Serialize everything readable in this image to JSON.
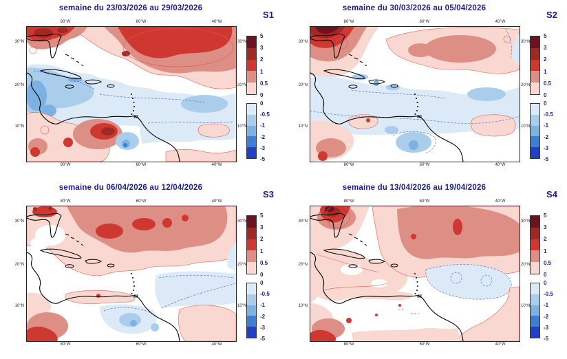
{
  "figure_title": "",
  "panels": [
    {
      "tag": "S1",
      "title": "semaine du 23/03/2026 au 29/03/2026"
    },
    {
      "tag": "S2",
      "title": "semaine du 30/03/2026 au 05/04/2026"
    },
    {
      "tag": "S3",
      "title": "semaine du 06/04/2026 au 12/04/2026"
    },
    {
      "tag": "S4",
      "title": "semaine du 13/04/2026 au 19/04/2026"
    }
  ],
  "axis": {
    "lon_ticks": [
      "80°W",
      "60°W",
      "40°W"
    ],
    "lat_ticks": [
      "30°N",
      "20°N",
      "10°N"
    ]
  },
  "colorbar": {
    "positive": {
      "labels": [
        "5",
        "3",
        "2",
        "1",
        "0.5",
        "0"
      ],
      "colors": [
        "#6c1220",
        "#9e2a23",
        "#cf3830",
        "#dd8e85",
        "#f9d8d1"
      ],
      "step": 17.2
    },
    "negative": {
      "labels": [
        "0",
        "-0.5",
        "-1",
        "-2",
        "-3",
        "-5"
      ],
      "colors": [
        "#dce9f6",
        "#abcdec",
        "#7cb1e2",
        "#3d7ed2",
        "#2140c4"
      ],
      "step": 16.2
    }
  },
  "palette": {
    "p05": "#f9d8d1",
    "p1": "#dd8e85",
    "p2": "#cf3830",
    "p3": "#9e2a23",
    "p5": "#6c1220",
    "m05": "#dce9f6",
    "m1": "#abcdec",
    "m2": "#7cb1e2",
    "m3": "#3d7ed2",
    "m5": "#2140c4",
    "crp": "#e4584c",
    "crn": "#5570d6",
    "title": "#1b1b8e",
    "tick": "#222222"
  },
  "chart_data": {
    "type": "heatmap",
    "subtype": "filled-contour anomaly maps, 2x2 weekly panels, Caribbean / tropical North Atlantic",
    "x_ticks": [
      "80°W",
      "60°W",
      "40°W"
    ],
    "y_ticks": [
      "30°N",
      "20°N",
      "10°N"
    ],
    "colorbar_levels": [
      5,
      3,
      2,
      1,
      0.5,
      0,
      -0.5,
      -1,
      -2,
      -3,
      -5
    ],
    "contour_style": {
      "positive": "solid red lines",
      "negative": "dashed blue lines",
      "coastlines": "solid black"
    },
    "panels": [
      {
        "tag": "S1",
        "title": "semaine du 23/03/2026 au 29/03/2026",
        "warm_features": [
          "2 to 5 anomaly over SE United States / northern Gulf corner",
          "broad 0.5-2 warm band across subtropical Atlantic 22-32N with 1-2 core near 45-60W",
          "1-3 warm cell over Colombia/Venezuela near 72W 5-9N with small 2-3 core",
          "pale warm strip along bottom-right edge"
        ],
        "cool_features": [
          "-0.5 to -2 pool over western Caribbean and around Cuba",
          "0 to -1 band across tropical Atlantic 12-18N with -1 patch near 42W",
          "small -2 spot near 57W 3N"
        ]
      },
      {
        "tag": "S2",
        "title": "semaine du 30/03/2026 au 05/04/2026",
        "warm_features": [
          "3 to 5 maroon core over SE US coast fading to 0.5-1 down the left edge",
          "pale 0-1 warm band 20-30N with 0.5-1 core near 45-57W",
          "warm spots: SW corner 1-2, small blob near 42W 8N"
        ],
        "cool_features": [
          "extensive weak 0 to -1 cool area over Caribbean and central tropical Atlantic",
          "-1 to -2 patches near 55-60W 0-8N",
          "-1 patch near 40W 18N"
        ]
      },
      {
        "tag": "S3",
        "title": "semaine du 06/04/2026 au 12/04/2026",
        "warm_features": [
          "large 0.5-1 warm band over most of the subtropical Atlantic 18-32N",
          "1-2 cores near 68W 26N and 55-60W 28N",
          "1-2 over Florida/SE US",
          "1-2 core at bottom-left (eastern Pacific) corner",
          "pale warm blob bottom-right near 38-45W"
        ],
        "cool_features": [
          "0 to -0.5 region east of 55W between 10-20N",
          "-0.5 to -2 pocket near 55-62W 2-8N"
        ]
      },
      {
        "tag": "S4",
        "title": "semaine du 13/04/2026 au 19/04/2026",
        "warm_features": [
          "2 to 5 compact maximum over SE US coast",
          "wide 0.5-1 warm band from 70W to the east edge 18-30N with small 1-2 spots near 50W 27N",
          "weak 0-0.5 warmth over most of the Caribbean and along both bottom corners",
          "1-2 core at bottom-left corner"
        ],
        "cool_features": [
          "weak 0 to -0.5 area near 38-52W 10-18N outlined by dashed contours"
        ]
      }
    ]
  }
}
